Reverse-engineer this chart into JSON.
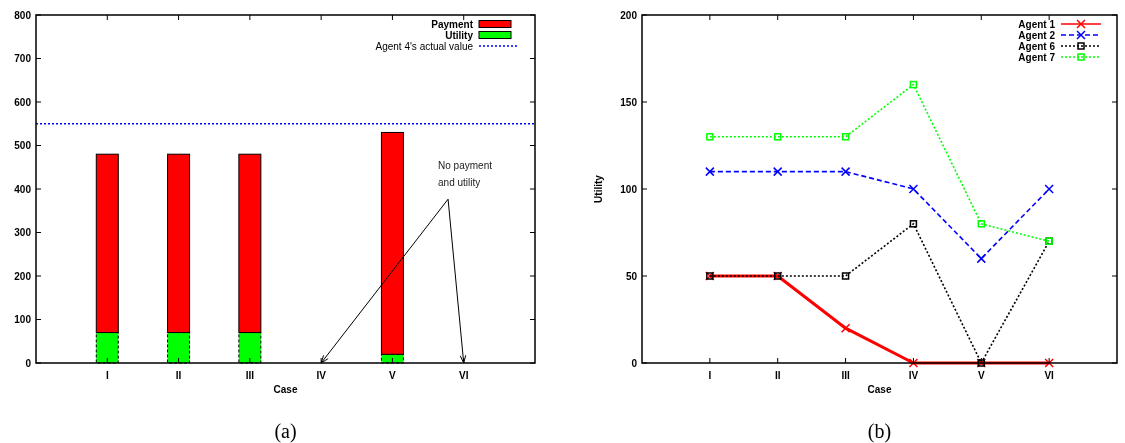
{
  "chart_data": [
    {
      "type": "bar",
      "stacked": true,
      "xlabel": "Case",
      "categories": [
        "I",
        "II",
        "III",
        "IV",
        "V",
        "VI"
      ],
      "series": [
        {
          "name": "Utility",
          "color": "#00ff00",
          "values": [
            70,
            70,
            70,
            0,
            20,
            0
          ]
        },
        {
          "name": "Payment",
          "color": "#ff0000",
          "values": [
            410,
            410,
            410,
            0,
            510,
            0
          ]
        }
      ],
      "ylim": [
        0,
        800
      ],
      "yticks": [
        0,
        100,
        200,
        300,
        400,
        500,
        600,
        700,
        800
      ],
      "legend": "top right",
      "ref_lines": [
        {
          "axis": "y",
          "value": 550,
          "label": "Agent 4's actual value",
          "color": "#0000ff",
          "line_style": "dotted"
        }
      ],
      "annotations": [
        {
          "text": "No payment\nand utility",
          "y": 0
        },
        "(a)"
      ]
    },
    {
      "type": "line",
      "xlabel": "Case",
      "ylabel": "Utility",
      "categories": [
        "I",
        "II",
        "III",
        "IV",
        "V",
        "VI"
      ],
      "series": [
        {
          "name": "Agent 1",
          "color": "#ff0000",
          "line_style": "solid",
          "marker": "cross",
          "values": [
            50,
            50,
            20,
            0,
            0,
            0
          ]
        },
        {
          "name": "Agent 2",
          "color": "#0000ff",
          "line_style": "dashed",
          "marker": "cross",
          "values": [
            110,
            110,
            110,
            100,
            60,
            100
          ]
        },
        {
          "name": "Agent 6",
          "color": "#000000",
          "line_style": "dotted",
          "marker": "square",
          "values": [
            50,
            50,
            50,
            80,
            0,
            70
          ]
        },
        {
          "name": "Agent 7",
          "color": "#00ff00",
          "line_style": "dotted",
          "marker": "square",
          "values": [
            130,
            130,
            130,
            160,
            80,
            70
          ]
        }
      ],
      "ylim": [
        0,
        200
      ],
      "yticks": [
        0,
        50,
        100,
        150,
        200
      ],
      "legend": "top right",
      "annotations": [
        "(b)"
      ]
    }
  ]
}
